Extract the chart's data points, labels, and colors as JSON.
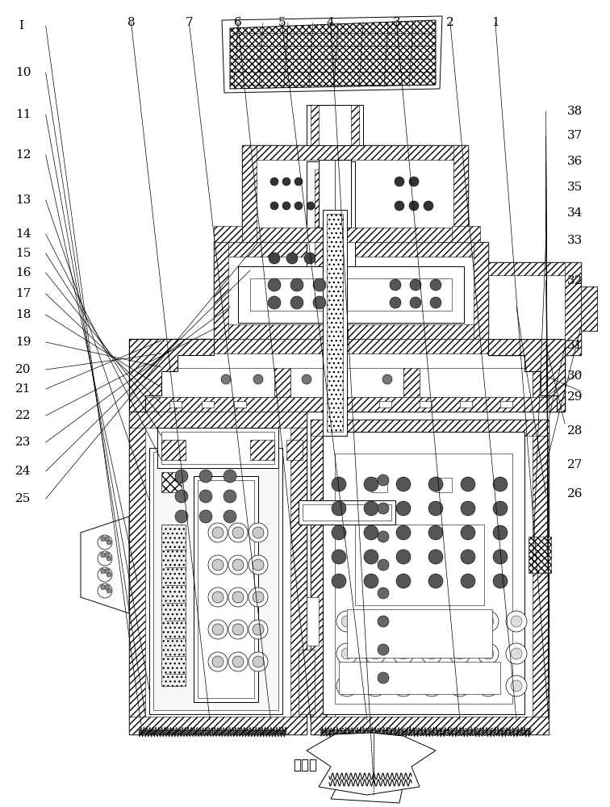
{
  "fig_width": 7.56,
  "fig_height": 10.0,
  "dpi": 100,
  "bg_color": "#ffffff",
  "line_color": "#000000",
  "label_color": "#000000",
  "title_bottom": "排气口",
  "left_labels": [
    {
      "num": "I",
      "xf": 0.03,
      "yf": 0.968
    },
    {
      "num": "10",
      "xf": 0.025,
      "yf": 0.91
    },
    {
      "num": "11",
      "xf": 0.025,
      "yf": 0.858
    },
    {
      "num": "12",
      "xf": 0.025,
      "yf": 0.808
    },
    {
      "num": "13",
      "xf": 0.025,
      "yf": 0.752
    },
    {
      "num": "14",
      "xf": 0.025,
      "yf": 0.71
    },
    {
      "num": "15",
      "xf": 0.025,
      "yf": 0.686
    },
    {
      "num": "16",
      "xf": 0.025,
      "yf": 0.662
    },
    {
      "num": "17",
      "xf": 0.025,
      "yf": 0.636
    },
    {
      "num": "18",
      "xf": 0.025,
      "yf": 0.61
    },
    {
      "num": "19",
      "xf": 0.025,
      "yf": 0.576
    },
    {
      "num": "20",
      "xf": 0.025,
      "yf": 0.542
    },
    {
      "num": "21",
      "xf": 0.025,
      "yf": 0.518
    },
    {
      "num": "22",
      "xf": 0.025,
      "yf": 0.485
    },
    {
      "num": "23",
      "xf": 0.025,
      "yf": 0.452
    },
    {
      "num": "24",
      "xf": 0.025,
      "yf": 0.416
    },
    {
      "num": "25",
      "xf": 0.025,
      "yf": 0.382
    }
  ],
  "top_labels": [
    {
      "num": "8",
      "xf": 0.215,
      "yf": 0.972
    },
    {
      "num": "7",
      "xf": 0.31,
      "yf": 0.972
    },
    {
      "num": "6",
      "xf": 0.39,
      "yf": 0.972
    },
    {
      "num": "5",
      "xf": 0.462,
      "yf": 0.972
    },
    {
      "num": "4",
      "xf": 0.542,
      "yf": 0.972
    },
    {
      "num": "3",
      "xf": 0.65,
      "yf": 0.972
    },
    {
      "num": "2",
      "xf": 0.738,
      "yf": 0.972
    },
    {
      "num": "1",
      "xf": 0.812,
      "yf": 0.972
    }
  ],
  "right_labels": [
    {
      "num": "38",
      "xf": 0.93,
      "yf": 0.862
    },
    {
      "num": "37",
      "xf": 0.93,
      "yf": 0.832
    },
    {
      "num": "36",
      "xf": 0.93,
      "yf": 0.8
    },
    {
      "num": "35",
      "xf": 0.93,
      "yf": 0.768
    },
    {
      "num": "34",
      "xf": 0.93,
      "yf": 0.736
    },
    {
      "num": "33",
      "xf": 0.93,
      "yf": 0.702
    },
    {
      "num": "32",
      "xf": 0.93,
      "yf": 0.652
    },
    {
      "num": "31",
      "xf": 0.93,
      "yf": 0.572
    },
    {
      "num": "30",
      "xf": 0.93,
      "yf": 0.534
    },
    {
      "num": "29",
      "xf": 0.93,
      "yf": 0.508
    },
    {
      "num": "28",
      "xf": 0.93,
      "yf": 0.466
    },
    {
      "num": "27",
      "xf": 0.93,
      "yf": 0.424
    },
    {
      "num": "26",
      "xf": 0.93,
      "yf": 0.388
    }
  ]
}
